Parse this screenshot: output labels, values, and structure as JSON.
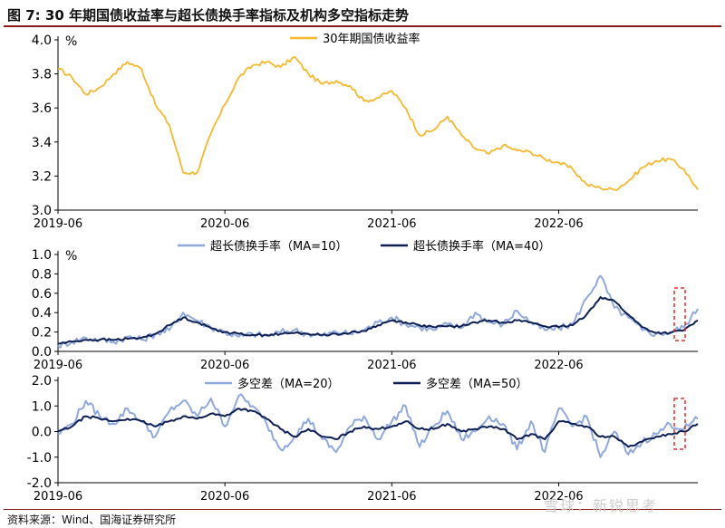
{
  "header": {
    "title": "图 7:  30 年期国债收益率与超长债换手率指标及机构多空指标走势"
  },
  "footer": {
    "source": "资料来源：Wind、国海证券研究所",
    "watermark": "雪球：新锐思考"
  },
  "colors": {
    "yield": "#f5b82e",
    "turnover_raw": "#8fa9dc",
    "turnover_ma": "#0d1f55",
    "spread_raw": "#8fa9dc",
    "spread_ma": "#0d1f55",
    "highlight_box": "#e0302a",
    "axis": "#000000"
  },
  "chart_data": [
    {
      "type": "line",
      "unit_label": "%",
      "x_ticks": [
        "2019-06",
        "2020-06",
        "2021-06",
        "2022-06"
      ],
      "x_range": [
        "2019-06",
        "2023-04"
      ],
      "ylim": [
        3.0,
        4.0
      ],
      "y_ticks": [
        "3.0",
        "3.2",
        "3.4",
        "3.6",
        "3.8",
        "4.0"
      ],
      "legend_position": "top-center",
      "grid": false,
      "series": [
        {
          "name": "30年期国债收益率",
          "x": [
            "2019-06",
            "2019-07",
            "2019-08",
            "2019-09",
            "2019-10",
            "2019-11",
            "2019-12",
            "2020-01",
            "2020-02",
            "2020-03",
            "2020-04",
            "2020-05",
            "2020-06",
            "2020-07",
            "2020-08",
            "2020-09",
            "2020-10",
            "2020-11",
            "2020-12",
            "2021-01",
            "2021-02",
            "2021-03",
            "2021-04",
            "2021-05",
            "2021-06",
            "2021-07",
            "2021-08",
            "2021-09",
            "2021-10",
            "2021-11",
            "2021-12",
            "2022-01",
            "2022-02",
            "2022-03",
            "2022-04",
            "2022-05",
            "2022-06",
            "2022-07",
            "2022-08",
            "2022-09",
            "2022-10",
            "2022-11",
            "2022-12",
            "2023-01",
            "2023-02",
            "2023-03",
            "2023-04"
          ],
          "values": [
            3.83,
            3.78,
            3.68,
            3.72,
            3.8,
            3.87,
            3.83,
            3.62,
            3.5,
            3.22,
            3.22,
            3.45,
            3.62,
            3.78,
            3.85,
            3.87,
            3.84,
            3.9,
            3.8,
            3.74,
            3.76,
            3.73,
            3.64,
            3.66,
            3.7,
            3.6,
            3.44,
            3.47,
            3.55,
            3.44,
            3.36,
            3.33,
            3.38,
            3.35,
            3.34,
            3.3,
            3.28,
            3.24,
            3.15,
            3.13,
            3.12,
            3.17,
            3.25,
            3.29,
            3.3,
            3.24,
            3.12
          ]
        }
      ]
    },
    {
      "type": "line",
      "unit_label": "%",
      "x_ticks": [
        "2019-06",
        "2020-06",
        "2021-06",
        "2022-06"
      ],
      "x_range": [
        "2019-06",
        "2023-04"
      ],
      "ylim": [
        0.0,
        1.0
      ],
      "y_ticks": [
        "0.0",
        "0.2",
        "0.4",
        "0.6",
        "0.8",
        "1.0"
      ],
      "legend_position": "top-center",
      "grid": false,
      "series": [
        {
          "name": "超长债换手率（MA=10）",
          "x": [
            "2019-06",
            "2019-07",
            "2019-08",
            "2019-09",
            "2019-10",
            "2019-11",
            "2019-12",
            "2020-01",
            "2020-02",
            "2020-03",
            "2020-04",
            "2020-05",
            "2020-06",
            "2020-07",
            "2020-08",
            "2020-09",
            "2020-10",
            "2020-11",
            "2020-12",
            "2021-01",
            "2021-02",
            "2021-03",
            "2021-04",
            "2021-05",
            "2021-06",
            "2021-07",
            "2021-08",
            "2021-09",
            "2021-10",
            "2021-11",
            "2021-12",
            "2022-01",
            "2022-02",
            "2022-03",
            "2022-04",
            "2022-05",
            "2022-06",
            "2022-07",
            "2022-08",
            "2022-09",
            "2022-10",
            "2022-11",
            "2022-12",
            "2023-01",
            "2023-02",
            "2023-03",
            "2023-04"
          ],
          "values": [
            0.06,
            0.1,
            0.14,
            0.12,
            0.1,
            0.15,
            0.12,
            0.18,
            0.22,
            0.4,
            0.32,
            0.25,
            0.2,
            0.15,
            0.18,
            0.16,
            0.2,
            0.22,
            0.18,
            0.16,
            0.2,
            0.18,
            0.22,
            0.3,
            0.35,
            0.28,
            0.25,
            0.22,
            0.28,
            0.24,
            0.4,
            0.3,
            0.28,
            0.42,
            0.3,
            0.22,
            0.24,
            0.28,
            0.55,
            0.78,
            0.45,
            0.35,
            0.22,
            0.18,
            0.2,
            0.25,
            0.44
          ]
        },
        {
          "name": "超长债换手率（MA=40）",
          "x": [
            "2019-06",
            "2019-07",
            "2019-08",
            "2019-09",
            "2019-10",
            "2019-11",
            "2019-12",
            "2020-01",
            "2020-02",
            "2020-03",
            "2020-04",
            "2020-05",
            "2020-06",
            "2020-07",
            "2020-08",
            "2020-09",
            "2020-10",
            "2020-11",
            "2020-12",
            "2021-01",
            "2021-02",
            "2021-03",
            "2021-04",
            "2021-05",
            "2021-06",
            "2021-07",
            "2021-08",
            "2021-09",
            "2021-10",
            "2021-11",
            "2021-12",
            "2022-01",
            "2022-02",
            "2022-03",
            "2022-04",
            "2022-05",
            "2022-06",
            "2022-07",
            "2022-08",
            "2022-09",
            "2022-10",
            "2022-11",
            "2022-12",
            "2023-01",
            "2023-02",
            "2023-03",
            "2023-04"
          ],
          "values": [
            0.08,
            0.1,
            0.12,
            0.12,
            0.12,
            0.13,
            0.14,
            0.18,
            0.27,
            0.35,
            0.3,
            0.24,
            0.2,
            0.18,
            0.17,
            0.17,
            0.18,
            0.19,
            0.18,
            0.17,
            0.18,
            0.19,
            0.21,
            0.27,
            0.32,
            0.3,
            0.27,
            0.25,
            0.26,
            0.26,
            0.3,
            0.32,
            0.3,
            0.32,
            0.3,
            0.26,
            0.25,
            0.27,
            0.38,
            0.56,
            0.52,
            0.38,
            0.25,
            0.19,
            0.19,
            0.22,
            0.32
          ]
        }
      ]
    },
    {
      "type": "line",
      "x_ticks": [
        "2019-06",
        "2020-06",
        "2021-06",
        "2022-06"
      ],
      "x_range": [
        "2019-06",
        "2023-04"
      ],
      "ylim": [
        -2.0,
        2.0
      ],
      "y_ticks": [
        "-2.0",
        "-1.0",
        "0.0",
        "1.0",
        "2.0"
      ],
      "legend_position": "top-center",
      "grid": false,
      "series": [
        {
          "name": "多空差（MA=20）",
          "x": [
            "2019-06",
            "2019-07",
            "2019-08",
            "2019-09",
            "2019-10",
            "2019-11",
            "2019-12",
            "2020-01",
            "2020-02",
            "2020-03",
            "2020-04",
            "2020-05",
            "2020-06",
            "2020-07",
            "2020-08",
            "2020-09",
            "2020-10",
            "2020-11",
            "2020-12",
            "2021-01",
            "2021-02",
            "2021-03",
            "2021-04",
            "2021-05",
            "2021-06",
            "2021-07",
            "2021-08",
            "2021-09",
            "2021-10",
            "2021-11",
            "2021-12",
            "2022-01",
            "2022-02",
            "2022-03",
            "2022-04",
            "2022-05",
            "2022-06",
            "2022-07",
            "2022-08",
            "2022-09",
            "2022-10",
            "2022-11",
            "2022-12",
            "2023-01",
            "2023-02",
            "2023-03",
            "2023-04"
          ],
          "values": [
            -0.1,
            0.3,
            1.2,
            0.6,
            0.3,
            0.9,
            0.4,
            -0.2,
            0.8,
            1.2,
            0.6,
            1.3,
            0.2,
            1.4,
            1.0,
            0.3,
            -0.7,
            -0.2,
            0.5,
            -0.3,
            -0.8,
            0.2,
            0.6,
            -0.3,
            0.4,
            1.0,
            -0.6,
            0.2,
            0.8,
            -0.3,
            0.0,
            0.6,
            0.3,
            -0.7,
            0.4,
            -0.8,
            0.9,
            0.2,
            0.6,
            -1.0,
            0.0,
            -0.9,
            -0.4,
            -0.1,
            0.3,
            0.1,
            0.5
          ]
        },
        {
          "name": "多空差（MA=50）",
          "x": [
            "2019-06",
            "2019-07",
            "2019-08",
            "2019-09",
            "2019-10",
            "2019-11",
            "2019-12",
            "2020-01",
            "2020-02",
            "2020-03",
            "2020-04",
            "2020-05",
            "2020-06",
            "2020-07",
            "2020-08",
            "2020-09",
            "2020-10",
            "2020-11",
            "2020-12",
            "2021-01",
            "2021-02",
            "2021-03",
            "2021-04",
            "2021-05",
            "2021-06",
            "2021-07",
            "2021-08",
            "2021-09",
            "2021-10",
            "2021-11",
            "2021-12",
            "2022-01",
            "2022-02",
            "2022-03",
            "2022-04",
            "2022-05",
            "2022-06",
            "2022-07",
            "2022-08",
            "2022-09",
            "2022-10",
            "2022-11",
            "2022-12",
            "2023-01",
            "2023-02",
            "2023-03",
            "2023-04"
          ],
          "values": [
            0.0,
            0.2,
            0.6,
            0.5,
            0.4,
            0.5,
            0.4,
            0.2,
            0.4,
            0.6,
            0.5,
            0.7,
            0.6,
            0.9,
            0.8,
            0.5,
            0.1,
            -0.2,
            0.1,
            -0.2,
            -0.3,
            0.0,
            0.2,
            0.1,
            0.2,
            0.4,
            0.1,
            0.1,
            0.3,
            0.0,
            0.1,
            0.2,
            0.1,
            -0.3,
            -0.1,
            -0.3,
            0.4,
            0.3,
            0.2,
            -0.2,
            -0.2,
            -0.6,
            -0.4,
            -0.2,
            -0.1,
            0.0,
            0.3
          ]
        }
      ]
    }
  ]
}
